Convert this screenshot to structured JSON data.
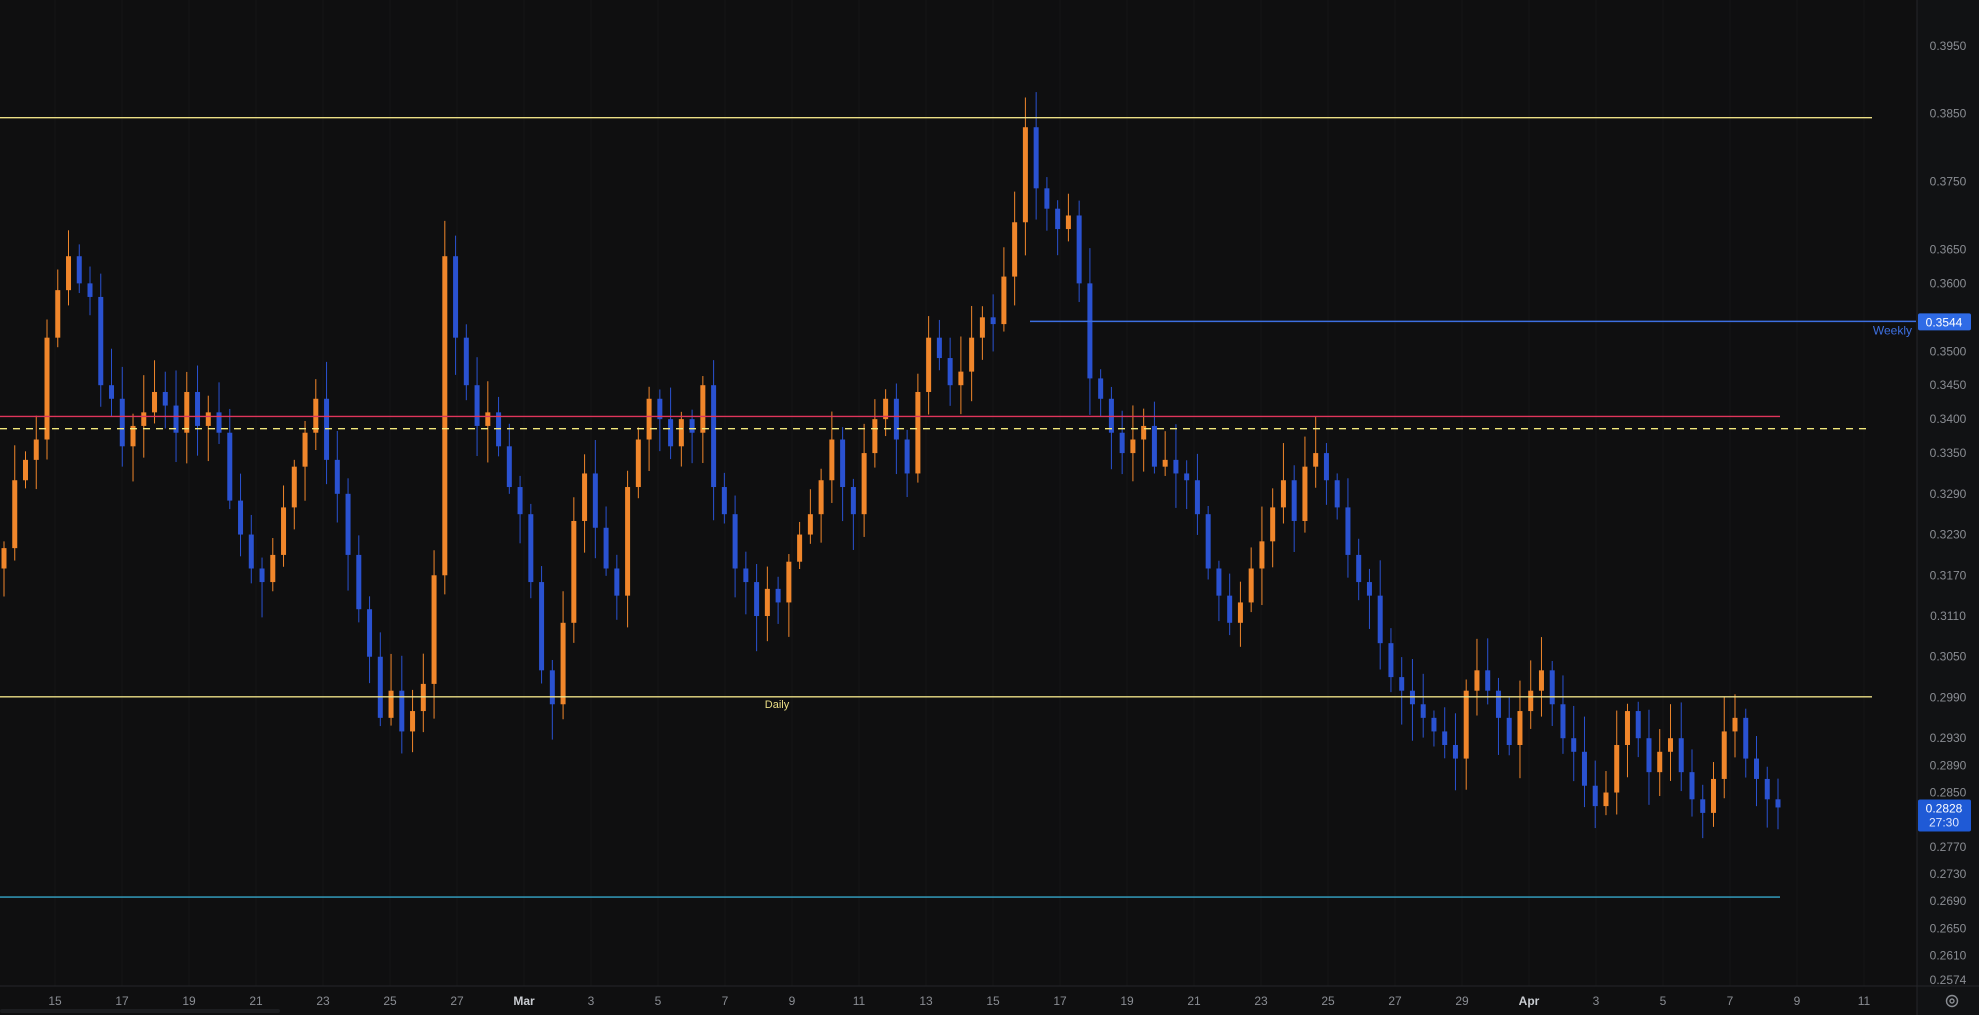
{
  "theme": {
    "background": "#0f0f10",
    "axis_background": "#111214",
    "grid": "#141416",
    "axis_text": "#8a8d93",
    "axis_border": "#25262a",
    "up_color": "#f0862b",
    "down_color": "#2a52d1"
  },
  "chart_data": {
    "type": "candlestick",
    "x_axis": {
      "tick_labels": [
        "15",
        "17",
        "19",
        "21",
        "23",
        "25",
        "27",
        "Mar",
        "3",
        "5",
        "7",
        "9",
        "11",
        "13",
        "15",
        "17",
        "19",
        "21",
        "23",
        "25",
        "27",
        "29",
        "Apr",
        "3",
        "5",
        "7",
        "9",
        "11"
      ],
      "bold_labels": [
        "Mar",
        "Apr"
      ]
    },
    "y_axis": {
      "range": [
        0.2565,
        0.3985
      ],
      "tick_labels": [
        "0.3950",
        "0.3850",
        "0.3750",
        "0.3650",
        "0.3600",
        "0.3500",
        "0.3450",
        "0.3400",
        "0.3350",
        "0.3290",
        "0.3230",
        "0.3170",
        "0.3110",
        "0.3050",
        "0.2990",
        "0.2930",
        "0.2890",
        "0.2850",
        "0.2770",
        "0.2730",
        "0.2690",
        "0.2650",
        "0.2610",
        "0.2574"
      ]
    },
    "candles_close": [
      0.321,
      0.331,
      0.334,
      0.337,
      0.352,
      0.359,
      0.364,
      0.36,
      0.358,
      0.345,
      0.343,
      0.336,
      0.339,
      0.341,
      0.344,
      0.342,
      0.338,
      0.344,
      0.339,
      0.341,
      0.338,
      0.328,
      0.323,
      0.318,
      0.316,
      0.32,
      0.327,
      0.333,
      0.338,
      0.343,
      0.334,
      0.329,
      0.32,
      0.312,
      0.305,
      0.296,
      0.3,
      0.294,
      0.297,
      0.301,
      0.317,
      0.364,
      0.352,
      0.345,
      0.339,
      0.341,
      0.336,
      0.33,
      0.326,
      0.316,
      0.303,
      0.298,
      0.31,
      0.325,
      0.332,
      0.324,
      0.318,
      0.314,
      0.33,
      0.337,
      0.343,
      0.34,
      0.336,
      0.34,
      0.338,
      0.345,
      0.33,
      0.326,
      0.318,
      0.316,
      0.311,
      0.315,
      0.313,
      0.319,
      0.323,
      0.326,
      0.331,
      0.337,
      0.33,
      0.326,
      0.335,
      0.34,
      0.343,
      0.337,
      0.332,
      0.344,
      0.352,
      0.349,
      0.345,
      0.347,
      0.352,
      0.355,
      0.354,
      0.361,
      0.369,
      0.383,
      0.374,
      0.371,
      0.368,
      0.37,
      0.36,
      0.346,
      0.343,
      0.338,
      0.335,
      0.337,
      0.339,
      0.333,
      0.334,
      0.332,
      0.331,
      0.326,
      0.318,
      0.314,
      0.31,
      0.313,
      0.318,
      0.322,
      0.327,
      0.331,
      0.325,
      0.333,
      0.335,
      0.331,
      0.327,
      0.32,
      0.316,
      0.314,
      0.307,
      0.302,
      0.3,
      0.298,
      0.296,
      0.294,
      0.292,
      0.29,
      0.3,
      0.303,
      0.3,
      0.296,
      0.292,
      0.297,
      0.3,
      0.303,
      0.298,
      0.293,
      0.291,
      0.286,
      0.283,
      0.285,
      0.292,
      0.297,
      0.293,
      0.288,
      0.291,
      0.293,
      0.288,
      0.284,
      0.282,
      0.287,
      0.294,
      0.296,
      0.29,
      0.287,
      0.284,
      0.2828
    ],
    "levels": [
      {
        "price": 0.3844,
        "color": "#ecdf86",
        "style": "solid",
        "label": ""
      },
      {
        "price": 0.3544,
        "color": "#3d6fe0",
        "style": "solid",
        "label": "Weekly",
        "start_fraction": 0.52
      },
      {
        "price": 0.3404,
        "color": "#e0355b",
        "style": "solid",
        "label": ""
      },
      {
        "price": 0.3386,
        "color": "#f4e97b",
        "style": "dashed",
        "label": ""
      },
      {
        "price": 0.2991,
        "color": "#ecdf86",
        "style": "solid",
        "label": "Daily"
      },
      {
        "price": 0.2696,
        "color": "#36a6c9",
        "style": "solid",
        "label": ""
      }
    ],
    "marker_weekly": {
      "value": "0.3544",
      "color": "#2f6be6"
    },
    "marker_last": {
      "value": "0.2828",
      "countdown": "27:30",
      "color": "#1f5ad6"
    }
  }
}
